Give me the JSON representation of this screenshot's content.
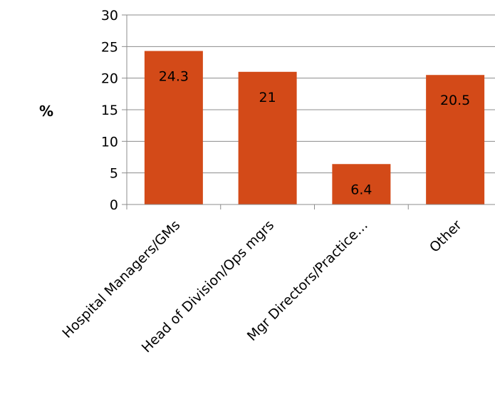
{
  "chart_data": {
    "type": "bar",
    "categories": [
      "Hospital Managers/GMs",
      "Head of Division/Ops mgrs",
      "Mgr Directors/Practice…",
      "Other"
    ],
    "values": [
      24.3,
      21,
      6.4,
      20.5
    ],
    "data_labels": [
      "24.3",
      "21",
      "6.4",
      "20.5"
    ],
    "ylabel": "%",
    "ylim": [
      0,
      30
    ],
    "yticks": [
      0,
      5,
      10,
      15,
      20,
      25,
      30
    ],
    "grid": true,
    "legend": "none",
    "colors": {
      "bar": "#D34A18",
      "grid": "#8C8C8C",
      "axis": "#8C8C8C",
      "text": "#000000"
    }
  }
}
